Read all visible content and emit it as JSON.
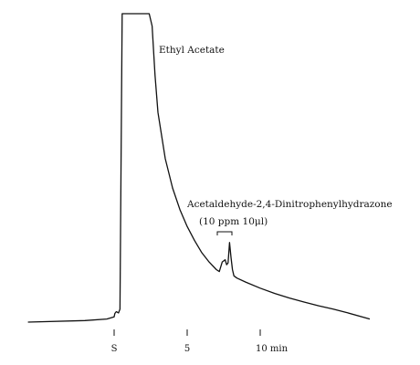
{
  "chart_data": {
    "type": "line",
    "title": "",
    "xlabel": "",
    "ylabel": "",
    "x_unit": "min",
    "xlim": [
      -5.9,
      17.5
    ],
    "ylim": [
      0,
      100
    ],
    "grid": false,
    "legend": "none",
    "line_color": "#111111",
    "x_ticks": [
      {
        "value": 0,
        "label": "S"
      },
      {
        "value": 5,
        "label": "5"
      },
      {
        "value": 10,
        "label": "10 min"
      }
    ],
    "annotations": [
      {
        "label": "Ethyl Acetate",
        "x": 2.6
      },
      {
        "label": "Acetaldehyde-2,4-Dinitrophenylhydrazone",
        "x": 7.6
      },
      {
        "label": "(10 ppm  10μl)",
        "x": 7.6
      }
    ],
    "series": [
      {
        "x": [
          -5.9,
          -2.0,
          -0.5,
          0.0,
          0.05,
          0.15,
          0.3,
          0.4,
          0.55,
          0.6,
          0.65,
          0.7,
          0.8,
          1.0,
          1.5,
          2.0,
          2.2,
          2.4,
          2.6,
          2.8,
          3.0,
          3.5,
          4.0,
          4.5,
          5.0,
          5.5,
          6.0,
          6.5,
          7.0,
          7.2,
          7.4,
          7.6,
          7.7,
          7.8,
          7.9,
          8.0,
          8.1,
          8.2,
          8.4,
          9.0,
          10.0,
          11.0,
          12.0,
          13.0,
          14.0,
          15.0,
          16.0,
          17.5
        ],
        "y": [
          0.0,
          0.5,
          1.0,
          1.7,
          2.8,
          3.4,
          3.0,
          4.2,
          100,
          100,
          100,
          100,
          100,
          100,
          100,
          100,
          100,
          100,
          96.0,
          80.0,
          68.0,
          53.0,
          43.5,
          36.5,
          31.0,
          26.5,
          22.5,
          19.5,
          17.0,
          16.4,
          19.5,
          20.2,
          18.6,
          19.2,
          25.8,
          21.0,
          17.0,
          15.0,
          14.3,
          13.0,
          11.0,
          9.3,
          7.8,
          6.5,
          5.3,
          4.2,
          3.0,
          1.0
        ]
      }
    ]
  }
}
